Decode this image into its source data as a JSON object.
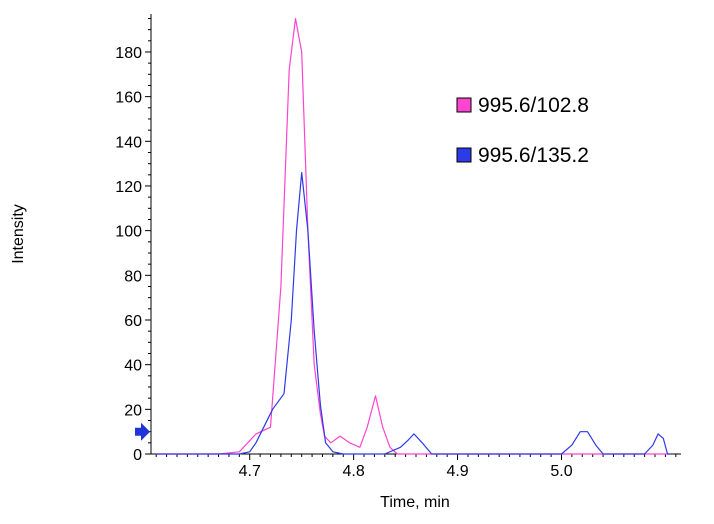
{
  "chart_data": {
    "type": "line",
    "xlabel": "Time, min",
    "ylabel": "Intensity",
    "xlim": [
      4.605,
      5.115
    ],
    "ylim": [
      0,
      197
    ],
    "xticks": [
      "4.7",
      "4.8",
      "4.9",
      "5.0"
    ],
    "yticks": [
      "0",
      "20",
      "40",
      "60",
      "80",
      "100",
      "120",
      "140",
      "160",
      "180"
    ],
    "xtick_values": [
      4.7,
      4.8,
      4.9,
      5.0
    ],
    "ytick_values": [
      0,
      20,
      40,
      60,
      80,
      100,
      120,
      140,
      160,
      180
    ],
    "legend_position": "top-right",
    "grid": false,
    "marker_arrow": {
      "y": 10,
      "color": "#1f34d9"
    },
    "series": [
      {
        "name": "995.6/102.8",
        "color": "#ff44d0",
        "x": [
          4.61,
          4.67,
          4.69,
          4.706,
          4.72,
          4.73,
          4.738,
          4.744,
          4.75,
          4.756,
          4.762,
          4.768,
          4.772,
          4.778,
          4.787,
          4.796,
          4.806,
          4.813,
          4.821,
          4.828,
          4.835,
          4.842,
          4.85,
          4.9,
          5.0,
          5.105
        ],
        "y": [
          0,
          0,
          1,
          9,
          12,
          75,
          172,
          195,
          180,
          100,
          40,
          18,
          8,
          5,
          8,
          5,
          3,
          12,
          26,
          12,
          3,
          0,
          0,
          0,
          0,
          0
        ]
      },
      {
        "name": "995.6/135.2",
        "color": "#2c3ae8",
        "x": [
          4.61,
          4.69,
          4.7,
          4.706,
          4.722,
          4.733,
          4.74,
          4.745,
          4.75,
          4.756,
          4.762,
          4.768,
          4.773,
          4.78,
          4.79,
          4.83,
          4.845,
          4.852,
          4.858,
          4.866,
          4.875,
          4.9,
          5.0,
          5.01,
          5.018,
          5.025,
          5.033,
          5.04,
          5.08,
          5.088,
          5.093,
          5.098,
          5.102,
          5.105
        ],
        "y": [
          0,
          0,
          1,
          5,
          20,
          27,
          60,
          100,
          126,
          100,
          55,
          22,
          5,
          1,
          0,
          0,
          3,
          6,
          9,
          5,
          0,
          0,
          0,
          4,
          10,
          10,
          4,
          0,
          0,
          4,
          9,
          7,
          0,
          0
        ]
      }
    ]
  }
}
